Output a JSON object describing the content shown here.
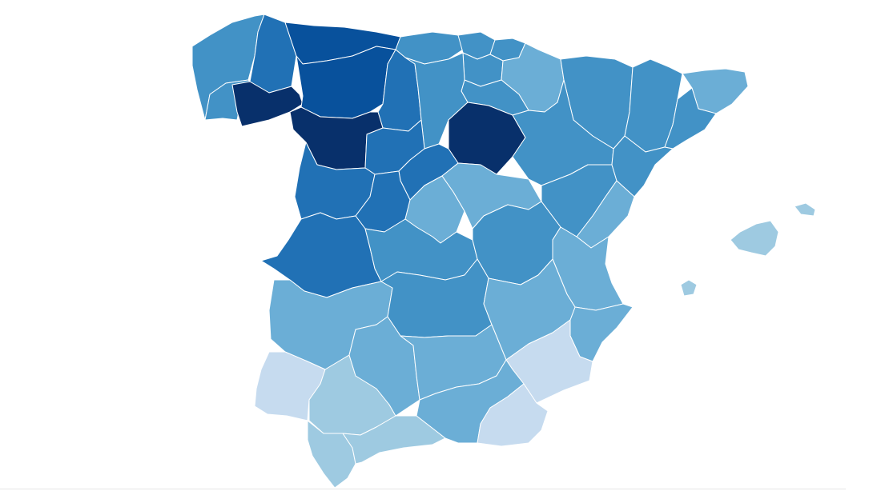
{
  "map": {
    "type": "choropleth",
    "palette": [
      "#c6dbef",
      "#9ecae1",
      "#6baed6",
      "#4292c6",
      "#2171b5",
      "#08519c",
      "#08306b"
    ],
    "regions": [
      {
        "name": "a-coruna",
        "level": 3
      },
      {
        "name": "lugo",
        "level": 4
      },
      {
        "name": "pontevedra",
        "level": 3
      },
      {
        "name": "ourense",
        "level": 6
      },
      {
        "name": "asturias",
        "level": 5
      },
      {
        "name": "cantabria",
        "level": 3
      },
      {
        "name": "vizcaya",
        "level": 3
      },
      {
        "name": "guipuzcoa",
        "level": 3
      },
      {
        "name": "alava",
        "level": 3
      },
      {
        "name": "navarra",
        "level": 2
      },
      {
        "name": "la-rioja",
        "level": 3
      },
      {
        "name": "leon",
        "level": 5
      },
      {
        "name": "palencia",
        "level": 4
      },
      {
        "name": "burgos",
        "level": 3
      },
      {
        "name": "zamora",
        "level": 6
      },
      {
        "name": "valladolid",
        "level": 4
      },
      {
        "name": "soria",
        "level": 6
      },
      {
        "name": "segovia",
        "level": 4
      },
      {
        "name": "salamanca",
        "level": 4
      },
      {
        "name": "avila",
        "level": 4
      },
      {
        "name": "madrid",
        "level": 2
      },
      {
        "name": "guadalajara",
        "level": 2
      },
      {
        "name": "huesca",
        "level": 3
      },
      {
        "name": "zaragoza",
        "level": 3
      },
      {
        "name": "teruel",
        "level": 3
      },
      {
        "name": "lleida",
        "level": 3
      },
      {
        "name": "girona",
        "level": 2
      },
      {
        "name": "barcelona",
        "level": 3
      },
      {
        "name": "tarragona",
        "level": 3
      },
      {
        "name": "caceres",
        "level": 4
      },
      {
        "name": "toledo",
        "level": 3
      },
      {
        "name": "cuenca",
        "level": 3
      },
      {
        "name": "castellon",
        "level": 2
      },
      {
        "name": "valencia",
        "level": 2
      },
      {
        "name": "badajoz",
        "level": 2
      },
      {
        "name": "ciudad-real",
        "level": 3
      },
      {
        "name": "albacete",
        "level": 2
      },
      {
        "name": "alicante",
        "level": 2
      },
      {
        "name": "murcia",
        "level": 0
      },
      {
        "name": "huelva",
        "level": 0
      },
      {
        "name": "sevilla",
        "level": 1
      },
      {
        "name": "cordoba",
        "level": 2
      },
      {
        "name": "jaen",
        "level": 2
      },
      {
        "name": "granada",
        "level": 2
      },
      {
        "name": "almeria",
        "level": 0
      },
      {
        "name": "cadiz",
        "level": 1
      },
      {
        "name": "malaga",
        "level": 1
      },
      {
        "name": "mallorca",
        "level": 1
      },
      {
        "name": "menorca",
        "level": 1
      },
      {
        "name": "ibiza",
        "level": 1
      }
    ]
  }
}
